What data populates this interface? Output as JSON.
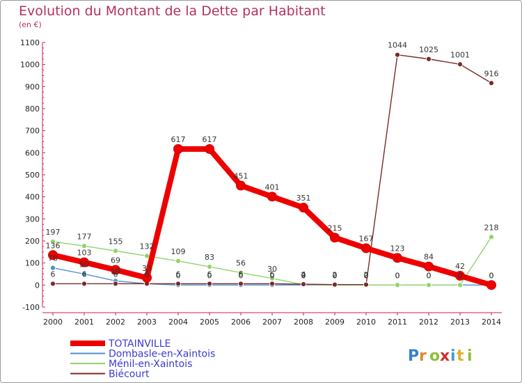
{
  "header": {
    "title": "Evolution du Montant de la Dette par Habitant",
    "unit": "(en €)"
  },
  "colors": {
    "title": "#b5305f",
    "legend_text": "#3a3ad0"
  },
  "watermark": "Proxiti",
  "chart_data": {
    "type": "line",
    "title": "Evolution du Montant de la Dette par Habitant",
    "ylabel": "(en €)",
    "xlabel": "",
    "x": [
      2000,
      2001,
      2002,
      2003,
      2004,
      2005,
      2006,
      2007,
      2008,
      2009,
      2010,
      2011,
      2012,
      2013,
      2014
    ],
    "ylim": [
      -100,
      1100
    ],
    "yticks": [
      -100,
      0,
      100,
      200,
      300,
      400,
      500,
      600,
      700,
      800,
      900,
      1000,
      1100
    ],
    "grid": false,
    "legend_position": "bottom-left",
    "series": [
      {
        "name": "TOTAINVILLE",
        "color": "#ee0000",
        "values": [
          136,
          103,
          69,
          33,
          617,
          617,
          451,
          401,
          351,
          215,
          167,
          123,
          84,
          42,
          0
        ]
      },
      {
        "name": "Dombasle-en-Xaintois",
        "color": "#4f8fc9",
        "values": [
          78,
          50,
          19,
          6,
          0,
          0,
          0,
          0,
          0,
          0,
          0,
          0,
          0,
          0,
          0
        ]
      },
      {
        "name": "Ménil-en-Xaintois",
        "color": "#8fd46a",
        "values": [
          197,
          177,
          155,
          132,
          109,
          83,
          56,
          30,
          2,
          0,
          0,
          0,
          0,
          0,
          218
        ]
      },
      {
        "name": "Biécourt",
        "color": "#7a2a2a",
        "values": [
          6,
          6,
          6,
          6,
          6,
          6,
          6,
          6,
          4,
          2,
          2,
          1044,
          1025,
          1001,
          916
        ]
      }
    ],
    "labels": [
      [
        "136",
        "103",
        "69",
        "33",
        "617",
        "617",
        "451",
        "401",
        "351",
        "215",
        "167",
        "123",
        "84",
        "42",
        "0"
      ],
      [
        "78",
        "50",
        "19",
        "6",
        "0",
        "0",
        "0",
        "0",
        "0",
        "0",
        "0",
        "0",
        "0",
        "0",
        "0"
      ],
      [
        "197",
        "177",
        "155",
        "132",
        "109",
        "83",
        "56",
        "30",
        "2",
        "0",
        "0",
        "0",
        "0",
        "0",
        "218"
      ],
      [
        "6",
        "6",
        "6",
        "6",
        "6",
        "6",
        "6",
        "6",
        "4",
        "2",
        "2",
        "1044",
        "1025",
        "1001",
        "916"
      ]
    ]
  }
}
